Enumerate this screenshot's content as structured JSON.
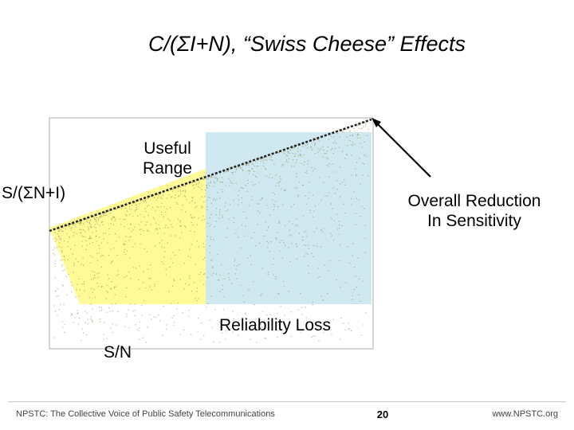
{
  "slide": {
    "title": "C/(ΣI+N), “Swiss Cheese” Effects",
    "page_number": "20",
    "footer_left": "NPSTC:  The Collective Voice of Public Safety Telecommunications",
    "footer_right": "www.NPSTC.org"
  },
  "callouts": {
    "useful_range": "Useful\nRange",
    "sn_axis": "S/(ΣN+I)",
    "overall_reduction": "Overall Reduction\nIn Sensitivity",
    "reliability_loss": "Reliability Loss",
    "sn": "S/N"
  },
  "colors": {
    "yellow_region": "#fdfa8c",
    "blue_region": "#cfe8ef",
    "scatter_dots": "#8a7a40",
    "reference_line": "#222222"
  }
}
